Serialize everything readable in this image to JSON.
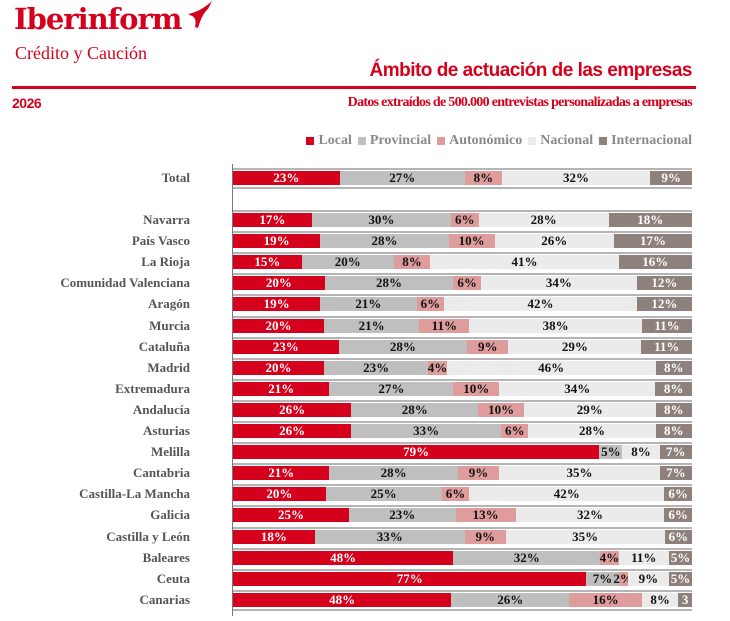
{
  "header": {
    "brand": "Iberinform",
    "brand_sub": "Crédito y Caución",
    "title": "Ámbito de actuación de las empresas",
    "year": "2026",
    "subtitle": "Datos extraídos de 500.000 entrevistas personalizadas a empresas"
  },
  "colors": {
    "Local": "#d5001c",
    "Provincial": "#bfbfbf",
    "Autonómico": "#de9c9c",
    "Nacional": "#ebebeb",
    "Internacional": "#8e807b"
  },
  "chart_data": {
    "type": "bar",
    "orientation": "horizontal-stacked-100",
    "legend": [
      "Local",
      "Provincial",
      "Autonómico",
      "Nacional",
      "Internacional"
    ],
    "legend_placement": "top-right",
    "unit": "%",
    "categories": [
      "Total",
      "Navarra",
      "País Vasco",
      "La Rioja",
      "Comunidad Valenciana",
      "Aragón",
      "Murcia",
      "Cataluña",
      "Madrid",
      "Extremadura",
      "Andalucía",
      "Asturias",
      "Melilla",
      "Cantabria",
      "Castilla-La Mancha",
      "Galicia",
      "Castilla y León",
      "Baleares",
      "Ceuta",
      "Canarias"
    ],
    "values": [
      [
        23,
        27,
        8,
        32,
        9
      ],
      [
        17,
        30,
        6,
        28,
        18
      ],
      [
        19,
        28,
        10,
        26,
        17
      ],
      [
        15,
        20,
        8,
        41,
        16
      ],
      [
        20,
        28,
        6,
        34,
        12
      ],
      [
        19,
        21,
        6,
        42,
        12
      ],
      [
        20,
        21,
        11,
        38,
        11
      ],
      [
        23,
        28,
        9,
        29,
        11
      ],
      [
        20,
        23,
        4,
        46,
        8
      ],
      [
        21,
        27,
        10,
        34,
        8
      ],
      [
        26,
        28,
        10,
        29,
        8
      ],
      [
        26,
        33,
        6,
        28,
        8
      ],
      [
        79,
        5,
        0,
        8,
        7
      ],
      [
        21,
        28,
        9,
        35,
        7
      ],
      [
        20,
        25,
        6,
        42,
        6
      ],
      [
        25,
        23,
        13,
        32,
        6
      ],
      [
        18,
        33,
        9,
        35,
        6
      ],
      [
        48,
        32,
        4,
        11,
        5
      ],
      [
        77,
        7,
        2,
        9,
        5
      ],
      [
        48,
        26,
        16,
        8,
        3
      ]
    ],
    "labels": [
      [
        "23%",
        "27%",
        "8%",
        "32%",
        "9%"
      ],
      [
        "17%",
        "30%",
        "6%",
        "28%",
        "18%"
      ],
      [
        "19%",
        "28%",
        "10%",
        "26%",
        "17%"
      ],
      [
        "15%",
        "20%",
        "8%",
        "41%",
        "16%"
      ],
      [
        "20%",
        "28%",
        "6%",
        "34%",
        "12%"
      ],
      [
        "19%",
        "21%",
        "6%",
        "42%",
        "12%"
      ],
      [
        "20%",
        "21%",
        "11%",
        "38%",
        "11%"
      ],
      [
        "23%",
        "28%",
        "9%",
        "29%",
        "11%"
      ],
      [
        "20%",
        "23%",
        "4%",
        "46%",
        "8%"
      ],
      [
        "21%",
        "27%",
        "10%",
        "34%",
        "8%"
      ],
      [
        "26%",
        "28%",
        "10%",
        "29%",
        "8%"
      ],
      [
        "26%",
        "33%",
        "6%",
        "28%",
        "8%"
      ],
      [
        "79%",
        "5%",
        "",
        "8%",
        "7%"
      ],
      [
        "21%",
        "28%",
        "9%",
        "35%",
        "7%"
      ],
      [
        "20%",
        "25%",
        "6%",
        "42%",
        "6%"
      ],
      [
        "25%",
        "23%",
        "13%",
        "32%",
        "6%"
      ],
      [
        "18%",
        "33%",
        "9%",
        "35%",
        "6%"
      ],
      [
        "48%",
        "32%",
        "4%",
        "11%",
        "5%"
      ],
      [
        "77%",
        "7%",
        "2%",
        "9%",
        "5%"
      ],
      [
        "48%",
        "26%",
        "16%",
        "8%",
        "3"
      ]
    ],
    "xlim": [
      0,
      100
    ],
    "grid": false
  }
}
